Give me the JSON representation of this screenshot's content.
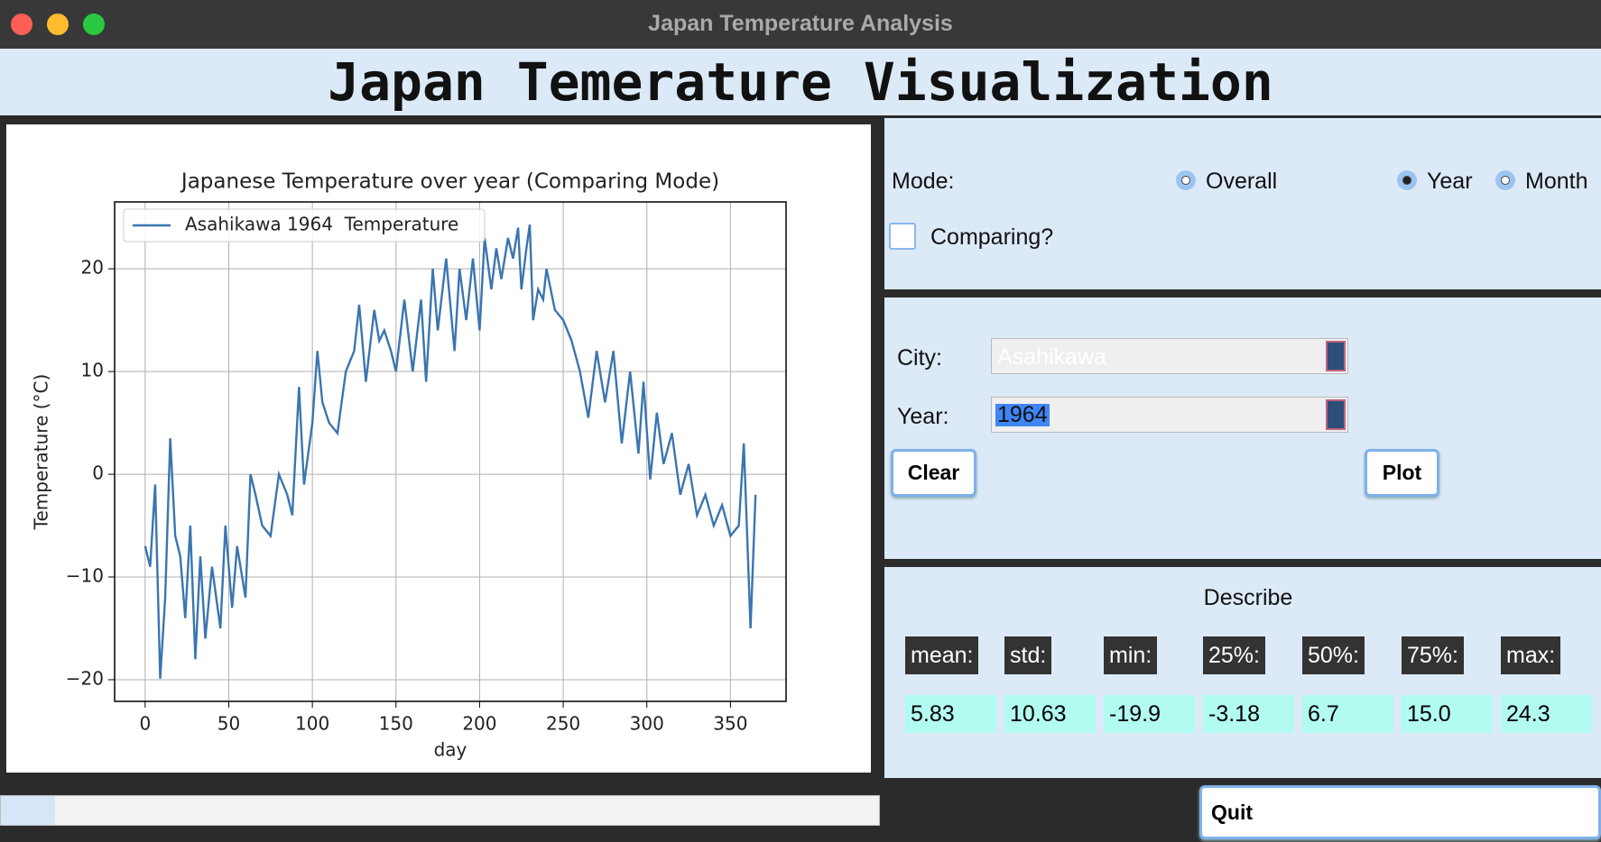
{
  "window": {
    "title": "Japan Temperature Analysis"
  },
  "header": {
    "title": "Japan Temerature Visualization"
  },
  "chart_data": {
    "type": "line",
    "title": "Japanese Temperature over year (Comparing Mode)",
    "x_label": "day",
    "y_label": "Temperature (°C)",
    "x": [
      0,
      3,
      6,
      9,
      12,
      15,
      18,
      21,
      24,
      27,
      30,
      33,
      36,
      40,
      45,
      48,
      52,
      55,
      60,
      63,
      66,
      70,
      75,
      80,
      85,
      88,
      92,
      95,
      100,
      103,
      106,
      110,
      115,
      120,
      125,
      128,
      132,
      137,
      140,
      143,
      147,
      150,
      155,
      160,
      165,
      168,
      172,
      175,
      180,
      185,
      188,
      192,
      196,
      200,
      203,
      207,
      210,
      213,
      217,
      220,
      223,
      225,
      228,
      230,
      232,
      235,
      238,
      240,
      245,
      250,
      255,
      260,
      265,
      270,
      275,
      280,
      285,
      290,
      295,
      298,
      302,
      306,
      310,
      315,
      320,
      325,
      330,
      335,
      340,
      345,
      350,
      355,
      358,
      362,
      365
    ],
    "series": [
      {
        "name": "Asahikawa 1964  Temperature",
        "color": "#3a75b0",
        "values": [
          -7,
          -9,
          -1,
          -19.9,
          -12,
          3.5,
          -6,
          -8,
          -14,
          -5,
          -18,
          -8,
          -16,
          -9,
          -15,
          -5,
          -13,
          -7,
          -12,
          0,
          -2,
          -5,
          -6,
          0,
          -2,
          -4,
          8.5,
          -1,
          5,
          12,
          7,
          5,
          4,
          10,
          12,
          16.5,
          9,
          16,
          13,
          14,
          12,
          10,
          17,
          10,
          17,
          9,
          20,
          14,
          21,
          12,
          20,
          15,
          21,
          14,
          23,
          18,
          22,
          19,
          23,
          21,
          24,
          18,
          22,
          24.3,
          15,
          18,
          17,
          20,
          16,
          15,
          13,
          10,
          5.5,
          12,
          7,
          12,
          3,
          10,
          2,
          9,
          -0.5,
          6,
          1,
          4,
          -2,
          1,
          -4,
          -2,
          -5,
          -3,
          -6,
          -5,
          3,
          -15,
          -2
        ]
      }
    ],
    "xlim": [
      -18.25,
      383.25
    ],
    "ylim": [
      -22.11,
      26.51
    ],
    "xticks": [
      0,
      50,
      100,
      150,
      200,
      250,
      300,
      350
    ],
    "yticks": [
      {
        "value": -20,
        "label": "−20"
      },
      {
        "value": -10,
        "label": "−10"
      },
      0,
      10,
      20
    ],
    "grid": true,
    "legend": "upper-left"
  },
  "controls": {
    "mode_label": "Mode:",
    "modes": [
      {
        "label": "Overall",
        "selected": false
      },
      {
        "label": "Year",
        "selected": true
      },
      {
        "label": "Month",
        "selected": false
      }
    ],
    "comparing": {
      "label": "Comparing?",
      "checked": false
    },
    "city": {
      "label": "City:",
      "value": "Asahikawa"
    },
    "year": {
      "label": "Year:",
      "value": "1964"
    },
    "buttons": [
      "Clear",
      "Plot"
    ]
  },
  "describe": {
    "title": "Describe",
    "stats": [
      {
        "label": "mean:",
        "value": "5.83"
      },
      {
        "label": "std:",
        "value": "10.63"
      },
      {
        "label": "min:",
        "value": "-19.9"
      },
      {
        "label": "25%:",
        "value": "-3.18"
      },
      {
        "label": "50%:",
        "value": "6.7"
      },
      {
        "label": "75%:",
        "value": "15.0"
      },
      {
        "label": "max:",
        "value": "24.3"
      }
    ]
  },
  "quit": "Quit"
}
